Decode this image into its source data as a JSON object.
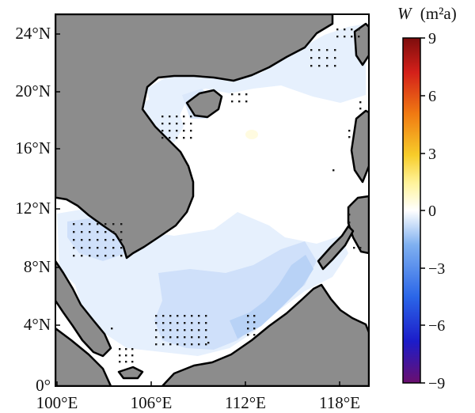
{
  "map": {
    "lat_ticks": [
      "24°N",
      "20°N",
      "16°N",
      "12°N",
      "8°N",
      "4°N",
      "0°"
    ],
    "lon_ticks": [
      "100°E",
      "106°E",
      "112°E",
      "118°E"
    ],
    "lat_values": [
      24,
      20,
      16,
      12,
      8,
      4,
      0
    ],
    "lon_values": [
      100,
      106,
      112,
      118
    ],
    "extent": {
      "lon": [
        100,
        120
      ],
      "lat": [
        0,
        25
      ]
    },
    "colors": {
      "land": "#8c8c8c",
      "ocean_zero": "#ffffff",
      "shade_light": "#e6f0fd",
      "shade_mid": "#cfe0fa",
      "shade_strong": "#b8d2f6",
      "stipple": "#1a1a1a",
      "frame": "#000000"
    }
  },
  "colorbar": {
    "title_var": "W",
    "title_unit": "(m²a)",
    "tick_labels": [
      "9",
      "6",
      "3",
      "0",
      "−3",
      "−6",
      "−9"
    ],
    "range": [
      -9,
      9
    ],
    "stops": [
      "#6b0f6f",
      "#1c1cc9",
      "#2b66e8",
      "#7fb0f0",
      "#ffffff",
      "#fff39a",
      "#f7cd2a",
      "#f07a12",
      "#d4201a",
      "#7d0d0d"
    ]
  }
}
